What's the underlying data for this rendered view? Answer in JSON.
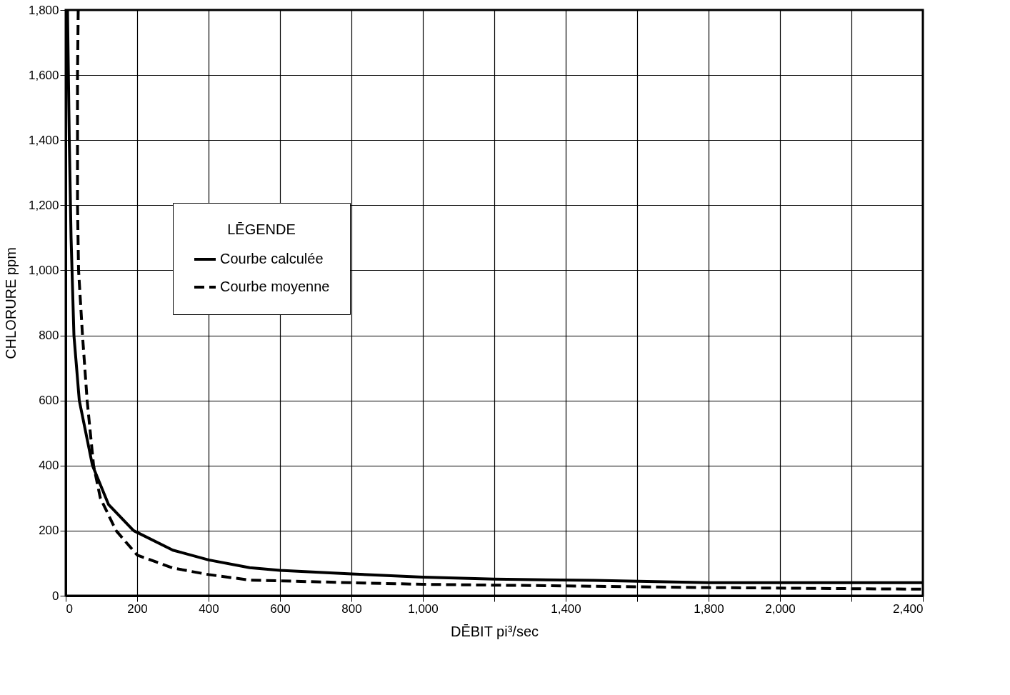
{
  "chart_data": {
    "type": "line",
    "xlabel": "DĒBIT  pi³/sec",
    "ylabel": "CHLORURE  ppm",
    "legend_title": "LĒGENDE",
    "legend": "top left",
    "grid": true,
    "marker": "none",
    "xlim": [
      0,
      2400
    ],
    "ylim": [
      0,
      1800
    ],
    "xticks": [
      0,
      200,
      400,
      600,
      800,
      {
        "value": 1000,
        "label": "1,000"
      },
      {
        "value": 1200,
        "label": null
      },
      {
        "value": 1400,
        "label": "1,400"
      },
      {
        "value": 1600,
        "label": null
      },
      {
        "value": 1800,
        "label": "1,800"
      },
      {
        "value": 2000,
        "label": "2,000"
      },
      {
        "value": 2200,
        "label": null
      },
      {
        "value": 2400,
        "label": "2,400"
      }
    ],
    "yticks": [
      0,
      200,
      400,
      600,
      800,
      {
        "value": 1000,
        "label": "1,000"
      },
      {
        "value": 1200,
        "label": "1,200"
      },
      {
        "value": 1400,
        "label": "1,400"
      },
      {
        "value": 1600,
        "label": "1,600"
      },
      {
        "value": 1800,
        "label": "1,800"
      }
    ],
    "series": [
      {
        "name": "Courbe calculée",
        "color": "#000000",
        "line_style": "solid",
        "x": [
          5,
          10,
          15,
          23,
          38,
          75,
          120,
          190,
          300,
          400,
          515,
          600,
          800,
          1000,
          1200,
          1480,
          1800,
          2000,
          2400
        ],
        "values": [
          1800,
          1400,
          1100,
          800,
          600,
          400,
          280,
          200,
          140,
          110,
          86,
          78,
          67,
          57,
          51,
          47,
          40,
          40,
          40
        ]
      },
      {
        "name": "Courbe moyenne",
        "color": "#000000",
        "line_style": "dashed",
        "x": [
          35,
          33,
          33,
          36,
          47,
          60,
          78,
          97,
          141,
          200,
          300,
          400,
          515,
          800,
          1000,
          1480,
          1800,
          2400
        ],
        "values": [
          1800,
          1600,
          1200,
          1000,
          800,
          600,
          400,
          300,
          200,
          125,
          85,
          65,
          48,
          40,
          35,
          29,
          25,
          20
        ]
      }
    ]
  }
}
